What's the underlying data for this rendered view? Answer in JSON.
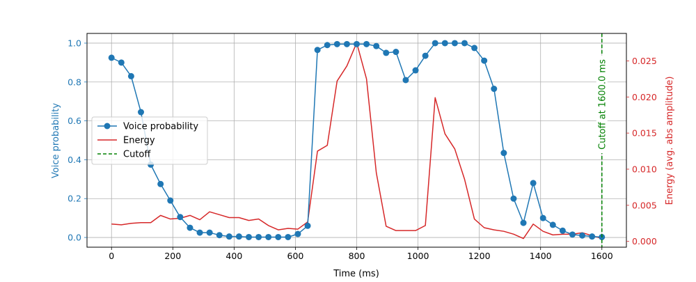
{
  "chart_data": {
    "type": "line",
    "xlabel": "Time (ms)",
    "ylabel_left": "Voice probability",
    "ylabel_right": "Energy (avg. abs amplitude)",
    "x_ticks": [
      "0",
      "200",
      "400",
      "600",
      "800",
      "1000",
      "1200",
      "1400",
      "1600"
    ],
    "y_left_ticks": [
      "0.0",
      "0.2",
      "0.4",
      "0.6",
      "0.8",
      "1.0"
    ],
    "y_right_ticks": [
      "0.000",
      "0.005",
      "0.010",
      "0.015",
      "0.020",
      "0.025"
    ],
    "xlim": [
      -80,
      1680
    ],
    "ylim_left": [
      -0.05,
      1.05
    ],
    "ylim_right": [
      -0.0008,
      0.0288
    ],
    "grid": true,
    "legend_position": "center-left",
    "legend": [
      {
        "label": "Voice probability",
        "style": "line-marker",
        "color": "#1f77b4"
      },
      {
        "label": "Energy",
        "style": "line",
        "color": "#d62728"
      },
      {
        "label": "Cutoff",
        "style": "dashed",
        "color": "#008000"
      }
    ],
    "series": [
      {
        "name": "Voice probability",
        "axis": "left",
        "color": "#1f77b4",
        "x": [
          0,
          32,
          64,
          96,
          128,
          160,
          192,
          224,
          256,
          288,
          320,
          352,
          384,
          416,
          448,
          480,
          512,
          544,
          576,
          608,
          640,
          672,
          704,
          736,
          768,
          800,
          832,
          864,
          896,
          928,
          960,
          992,
          1024,
          1056,
          1088,
          1120,
          1152,
          1184,
          1216,
          1248,
          1280,
          1312,
          1344,
          1376,
          1408,
          1440,
          1472,
          1504,
          1536,
          1568,
          1600
        ],
        "values": [
          0.925,
          0.9,
          0.83,
          0.645,
          0.375,
          0.275,
          0.19,
          0.105,
          0.05,
          0.025,
          0.025,
          0.012,
          0.005,
          0.005,
          0.002,
          0.002,
          0.002,
          0.002,
          0.002,
          0.018,
          0.06,
          0.965,
          0.99,
          0.995,
          0.995,
          0.995,
          0.995,
          0.985,
          0.95,
          0.955,
          0.81,
          0.86,
          0.935,
          1.0,
          1.0,
          1.0,
          1.0,
          0.975,
          0.91,
          0.765,
          0.435,
          0.2,
          0.075,
          0.28,
          0.1,
          0.065,
          0.035,
          0.015,
          0.01,
          0.005,
          0.002
        ]
      },
      {
        "name": "Energy",
        "axis": "right",
        "color": "#d62728",
        "x": [
          0,
          32,
          64,
          96,
          128,
          160,
          192,
          224,
          256,
          288,
          320,
          352,
          384,
          416,
          448,
          480,
          512,
          544,
          576,
          608,
          640,
          672,
          704,
          736,
          768,
          800,
          832,
          864,
          896,
          928,
          960,
          992,
          1024,
          1056,
          1088,
          1120,
          1152,
          1184,
          1216,
          1248,
          1280,
          1312,
          1344,
          1376,
          1408,
          1440,
          1472,
          1504,
          1536,
          1568,
          1600
        ],
        "values": [
          0.0024,
          0.0023,
          0.0025,
          0.0026,
          0.0026,
          0.0036,
          0.0031,
          0.0032,
          0.0036,
          0.003,
          0.0041,
          0.0037,
          0.0033,
          0.0033,
          0.0029,
          0.0031,
          0.0022,
          0.0016,
          0.0018,
          0.0017,
          0.0027,
          0.0125,
          0.0133,
          0.0222,
          0.0243,
          0.0275,
          0.0225,
          0.0095,
          0.0021,
          0.0015,
          0.0015,
          0.0015,
          0.0022,
          0.0199,
          0.0149,
          0.0128,
          0.0086,
          0.0031,
          0.0019,
          0.0016,
          0.0014,
          0.001,
          0.0004,
          0.0024,
          0.0014,
          0.0009,
          0.001,
          0.001,
          0.0012,
          0.0008,
          0.0004
        ]
      }
    ],
    "cutoff": {
      "x": 1600,
      "label": "Cutoff at 1600.0 ms",
      "color": "#008000"
    }
  }
}
